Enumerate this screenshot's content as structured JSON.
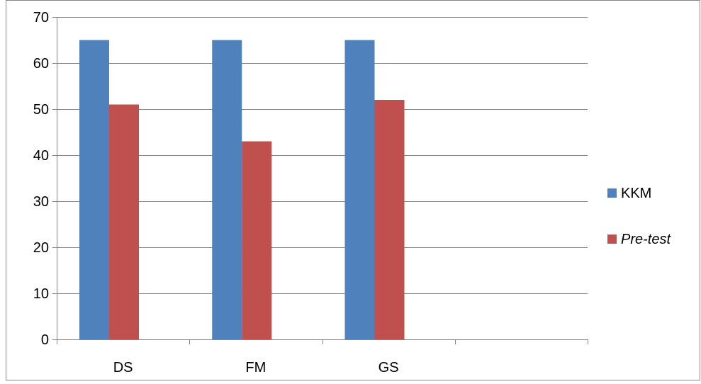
{
  "chart_data": {
    "type": "bar",
    "categories": [
      "DS",
      "FM",
      "GS",
      ""
    ],
    "series": [
      {
        "name": "KKM",
        "values": [
          65,
          65,
          65,
          null
        ],
        "color": "#4F81BD"
      },
      {
        "name": "Pre-test",
        "values": [
          51,
          43,
          52,
          null
        ],
        "color": "#C0504D"
      }
    ],
    "ylim": [
      0,
      70
    ],
    "yticks": [
      "0",
      "10",
      "20",
      "30",
      "40",
      "50",
      "60",
      "70"
    ],
    "grid": true,
    "legend_position": "right",
    "colors": {
      "gridline": "#868686",
      "axis": "#868686",
      "frame": "#868686",
      "text": "#000000"
    }
  }
}
